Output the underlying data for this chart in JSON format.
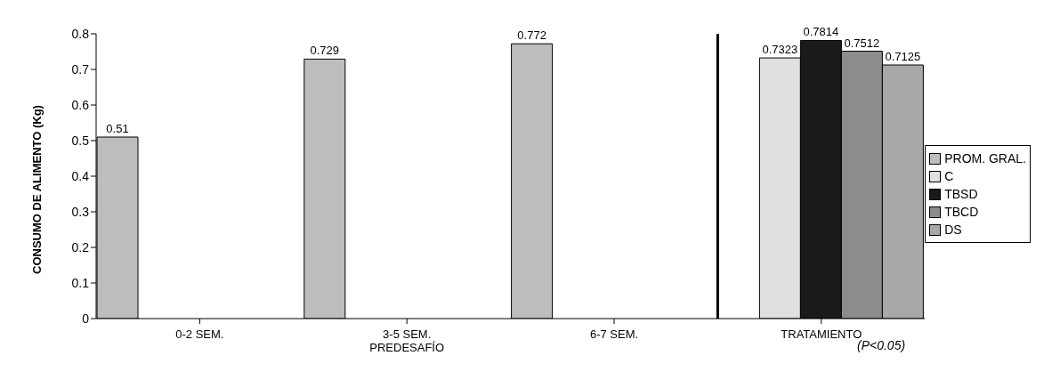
{
  "chart_data": {
    "type": "bar",
    "ylabel": "CONSUMO DE ALIMENTO (Kg)",
    "categories": [
      "0-2 SEM.",
      "3-5 SEM.\nPREDESAFÍO",
      "6-7 SEM.",
      "TRATAMIENTO"
    ],
    "series": [
      {
        "name": "PROM. GRAL.",
        "color": "#bdbdbd",
        "values": [
          0.51,
          0.729,
          0.772,
          null
        ]
      },
      {
        "name": "C",
        "color": "#e0e0e0",
        "values": [
          null,
          null,
          null,
          0.7323
        ]
      },
      {
        "name": "TBSD",
        "color": "#1a1a1a",
        "values": [
          null,
          null,
          null,
          0.7814
        ]
      },
      {
        "name": "TBCD",
        "color": "#8c8c8c",
        "values": [
          null,
          null,
          null,
          0.7512
        ]
      },
      {
        "name": "DS",
        "color": "#a8a8a8",
        "values": [
          null,
          null,
          null,
          0.7125
        ]
      }
    ],
    "ylim": [
      0,
      0.8
    ],
    "yticks": [
      0,
      0.1,
      0.2,
      0.3,
      0.4,
      0.5,
      0.6,
      0.7,
      0.8
    ],
    "data_labels": true,
    "grid": false,
    "legend": "right",
    "annotations": [
      "(P<0.05)"
    ]
  }
}
